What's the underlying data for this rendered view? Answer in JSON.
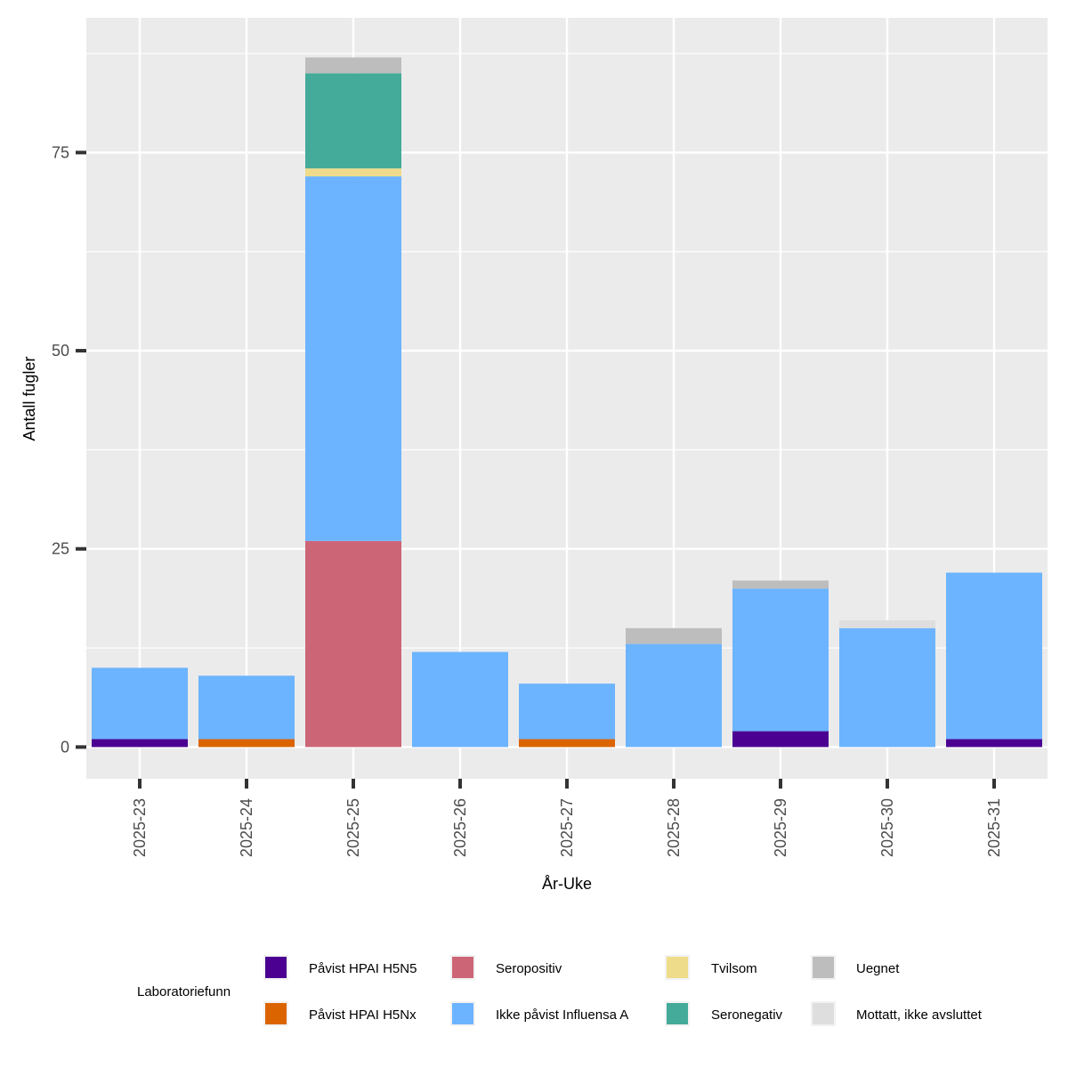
{
  "chart_data": {
    "type": "bar",
    "stacked": true,
    "title": "",
    "xlabel": "År-Uke",
    "ylabel": "Antall fugler",
    "ylim": [
      -4,
      92
    ],
    "yticks": [
      0,
      25,
      50,
      75
    ],
    "grid": true,
    "legend_position": "bottom",
    "legend_title": "Laboratoriefunn",
    "categories": [
      "2025-23",
      "2025-24",
      "2025-25",
      "2025-26",
      "2025-27",
      "2025-28",
      "2025-29",
      "2025-30",
      "2025-31"
    ],
    "series": [
      {
        "name": "Påvist HPAI H5N5",
        "color": "#4b0092",
        "values": [
          1,
          0,
          0,
          0,
          0,
          0,
          2,
          0,
          1
        ]
      },
      {
        "name": "Påvist HPAI H5Nx",
        "color": "#dc6400",
        "values": [
          0,
          1,
          0,
          0,
          1,
          0,
          0,
          0,
          0
        ]
      },
      {
        "name": "Seropositiv",
        "color": "#cc6677",
        "values": [
          0,
          0,
          26,
          0,
          0,
          0,
          0,
          0,
          0
        ]
      },
      {
        "name": "Ikke påvist Influensa A",
        "color": "#6cb4ff",
        "values": [
          9,
          8,
          46,
          12,
          7,
          13,
          18,
          15,
          21
        ]
      },
      {
        "name": "Tvilsom",
        "color": "#eedc8a",
        "values": [
          0,
          0,
          1,
          0,
          0,
          0,
          0,
          0,
          0
        ]
      },
      {
        "name": "Seronegativ",
        "color": "#44aa99",
        "values": [
          0,
          0,
          12,
          0,
          0,
          0,
          0,
          0,
          0
        ]
      },
      {
        "name": "Uegnet",
        "color": "#bdbdbd",
        "values": [
          0,
          0,
          2,
          0,
          0,
          2,
          1,
          0,
          0
        ]
      },
      {
        "name": "Mottatt, ikke avsluttet",
        "color": "#dedede",
        "values": [
          0,
          0,
          0,
          0,
          0,
          0,
          0,
          1,
          0
        ]
      }
    ]
  }
}
